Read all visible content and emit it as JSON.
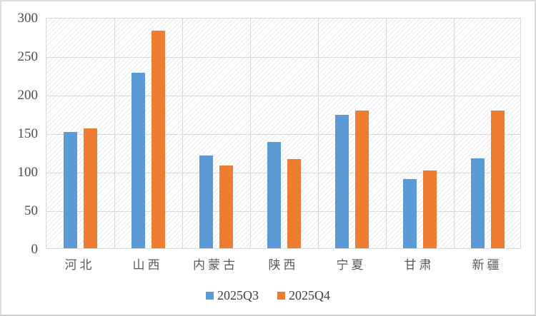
{
  "chart_data": {
    "type": "bar",
    "categories": [
      "河北",
      "山西",
      "内蒙古",
      "陕西",
      "宁夏",
      "甘肃",
      "新疆"
    ],
    "series": [
      {
        "name": "2025Q3",
        "color": "#5B9BD5",
        "values": [
          151,
          228,
          120,
          138,
          173,
          90,
          117
        ]
      },
      {
        "name": "2025Q4",
        "color": "#ED7D31",
        "values": [
          156,
          282,
          107,
          116,
          179,
          101,
          179
        ]
      }
    ],
    "title": "",
    "xlabel": "",
    "ylabel": "",
    "ylim": [
      0,
      300
    ],
    "ytick_step": 50,
    "yticks": [
      "0",
      "50",
      "100",
      "150",
      "200",
      "250",
      "300"
    ],
    "grid": "horizontal and vertical major gridlines",
    "plot_background": "light diagonal hatch pattern",
    "legend_position": "bottom",
    "colors": {
      "gridline": "#D9D9D9",
      "hatch_line": "#EBEBEB",
      "axis_text": "#595959",
      "series1": "#5B9BD5",
      "series2": "#ED7D31"
    }
  }
}
